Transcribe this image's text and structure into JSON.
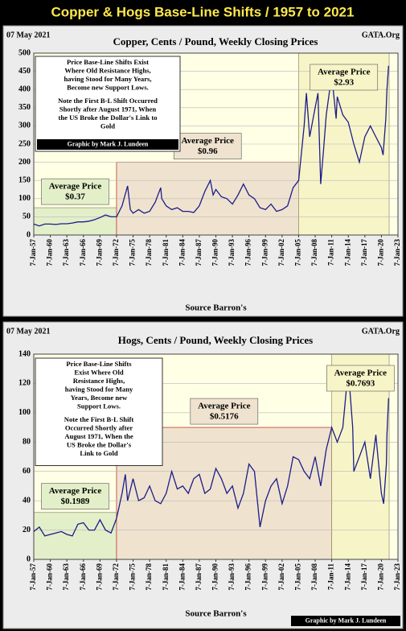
{
  "title": "Copper & Hogs Base-Line Shifts / 1957 to 2021",
  "chart_data": [
    {
      "type": "line",
      "title": "Copper, Cents / Pound, Weekly Closing Prices",
      "date": "07 May 2021",
      "source": "GATA.Org",
      "xlabel": "Source Barron's",
      "credit": "Graphic by Mark J. Lundeen",
      "color": "#1c1c8a",
      "grid": true,
      "xlim": [
        1957,
        2023
      ],
      "ylim": [
        0,
        500
      ],
      "yticks": [
        0,
        50,
        100,
        150,
        200,
        250,
        300,
        350,
        400,
        450,
        500
      ],
      "xticks": [
        {
          "value": 1957,
          "label": "7-Jan-57"
        },
        {
          "value": 1960,
          "label": "7-Jan-60"
        },
        {
          "value": 1963,
          "label": "7-Jan-63"
        },
        {
          "value": 1966,
          "label": "7-Jan-66"
        },
        {
          "value": 1969,
          "label": "7-Jan-69"
        },
        {
          "value": 1972,
          "label": "7-Jan-72"
        },
        {
          "value": 1975,
          "label": "7-Jan-75"
        },
        {
          "value": 1978,
          "label": "7-Jan-78"
        },
        {
          "value": 1981,
          "label": "7-Jan-81"
        },
        {
          "value": 1984,
          "label": "7-Jan-84"
        },
        {
          "value": 1987,
          "label": "7-Jan-87"
        },
        {
          "value": 1990,
          "label": "7-Jan-90"
        },
        {
          "value": 1993,
          "label": "7-Jan-93"
        },
        {
          "value": 1996,
          "label": "7-Jan-96"
        },
        {
          "value": 1999,
          "label": "7-Jan-99"
        },
        {
          "value": 2002,
          "label": "7-Jan-02"
        },
        {
          "value": 2005,
          "label": "7-Jan-05"
        },
        {
          "value": 2008,
          "label": "7-Jan-08"
        },
        {
          "value": 2011,
          "label": "7-Jan-11"
        },
        {
          "value": 2014,
          "label": "7-Jan-14"
        },
        {
          "value": 2017,
          "label": "7-Jan-17"
        },
        {
          "value": 2020,
          "label": "7-Jan-20"
        },
        {
          "value": 2023,
          "label": "7-Jan-23"
        }
      ],
      "x": [
        1957,
        1958,
        1959,
        1960,
        1961,
        1962,
        1963,
        1964,
        1965,
        1966,
        1967,
        1968,
        1969,
        1970,
        1971,
        1972,
        1973,
        1974,
        1974.5,
        1975,
        1976,
        1977,
        1978,
        1979,
        1980,
        1980.2,
        1981,
        1982,
        1983,
        1984,
        1985,
        1986,
        1987,
        1988,
        1989,
        1989.5,
        1990,
        1991,
        1992,
        1993,
        1994,
        1995,
        1996,
        1997,
        1998,
        1999,
        2000,
        2001,
        2002,
        2003,
        2004,
        2005,
        2006,
        2006.4,
        2007,
        2008,
        2008.5,
        2009,
        2009.5,
        2010,
        2011,
        2011.8,
        2012,
        2013,
        2014,
        2015,
        2016,
        2017,
        2018,
        2019,
        2020,
        2020.3,
        2020.8,
        2021,
        2021.3
      ],
      "values": [
        30,
        25,
        30,
        30,
        29,
        31,
        31,
        33,
        36,
        36,
        38,
        42,
        48,
        55,
        50,
        50,
        80,
        135,
        70,
        60,
        70,
        60,
        65,
        90,
        130,
        100,
        80,
        70,
        75,
        65,
        65,
        62,
        80,
        120,
        150,
        110,
        125,
        105,
        100,
        85,
        110,
        140,
        110,
        100,
        75,
        70,
        85,
        65,
        70,
        80,
        130,
        150,
        300,
        390,
        270,
        350,
        390,
        140,
        230,
        330,
        440,
        320,
        380,
        330,
        310,
        250,
        200,
        270,
        300,
        270,
        240,
        220,
        320,
        400,
        465
      ],
      "regions": [
        {
          "start": 1957,
          "end": 1972,
          "top": 75,
          "color": "#e3efc9",
          "label": "Average Price",
          "price": "$0.37"
        },
        {
          "start": 1972,
          "end": 2005,
          "top": 200,
          "color": "#efe3cf",
          "label": "Average Price",
          "price": "$0.96"
        },
        {
          "start": 2005,
          "end": 2021.4,
          "top": 500,
          "color": "#f7f5c8",
          "label": "Average Price",
          "price": "$2.93"
        }
      ],
      "note": [
        [
          "Price Base-Line Shifts Exist",
          "Where Old Resistance Highs,",
          "having Stood for Many Years,",
          "Become new Support Lows."
        ],
        [
          "Note the First B-L Shift Occurred",
          "Shortly after August 1971, When",
          "the US Broke the Dollar's Link to",
          "Gold"
        ]
      ]
    },
    {
      "type": "line",
      "title": "Hogs, Cents / Pound, Weekly Closing Prices",
      "date": "07 May 2021",
      "source": "GATA.Org",
      "xlabel": "Source Barron's",
      "credit": "Graphic by Mark J. Lundeen",
      "color": "#1c1c8a",
      "grid": true,
      "xlim": [
        1957,
        2023
      ],
      "ylim": [
        0,
        140
      ],
      "yticks": [
        0,
        20,
        40,
        60,
        80,
        100,
        120,
        140
      ],
      "xticks": [
        {
          "value": 1957,
          "label": "7-Jan-57"
        },
        {
          "value": 1960,
          "label": "7-Jan-60"
        },
        {
          "value": 1963,
          "label": "7-Jan-63"
        },
        {
          "value": 1966,
          "label": "7-Jan-66"
        },
        {
          "value": 1969,
          "label": "7-Jan-69"
        },
        {
          "value": 1972,
          "label": "7-Jan-72"
        },
        {
          "value": 1975,
          "label": "7-Jan-75"
        },
        {
          "value": 1978,
          "label": "7-Jan-78"
        },
        {
          "value": 1981,
          "label": "7-Jan-81"
        },
        {
          "value": 1984,
          "label": "7-Jan-84"
        },
        {
          "value": 1987,
          "label": "7-Jan-87"
        },
        {
          "value": 1990,
          "label": "7-Jan-90"
        },
        {
          "value": 1993,
          "label": "7-Jan-93"
        },
        {
          "value": 1996,
          "label": "7-Jan-96"
        },
        {
          "value": 1999,
          "label": "7-Jan-99"
        },
        {
          "value": 2002,
          "label": "7-Jan-02"
        },
        {
          "value": 2005,
          "label": "7-Jan-05"
        },
        {
          "value": 2008,
          "label": "7-Jan-08"
        },
        {
          "value": 2011,
          "label": "7-Jan-11"
        },
        {
          "value": 2014,
          "label": "7-Jan-14"
        },
        {
          "value": 2017,
          "label": "7-Jan-17"
        },
        {
          "value": 2020,
          "label": "7-Jan-20"
        },
        {
          "value": 2023,
          "label": "7-Jan-23"
        }
      ],
      "x": [
        1957,
        1958,
        1959,
        1960,
        1961,
        1962,
        1963,
        1964,
        1965,
        1966,
        1967,
        1968,
        1969,
        1970,
        1971,
        1972,
        1973,
        1973.6,
        1974,
        1975,
        1976,
        1977,
        1978,
        1979,
        1980,
        1981,
        1982,
        1983,
        1984,
        1985,
        1986,
        1987,
        1988,
        1989,
        1990,
        1991,
        1992,
        1993,
        1994,
        1995,
        1996,
        1997,
        1998,
        1999,
        2000,
        2001,
        2002,
        2003,
        2004,
        2005,
        2006,
        2007,
        2008,
        2009,
        2010,
        2011,
        2012,
        2013,
        2014,
        2014.8,
        2015,
        2016,
        2017,
        2018,
        2019,
        2020,
        2020.4,
        2020.9,
        2021,
        2021.3
      ],
      "values": [
        19,
        22,
        16,
        17,
        18,
        19,
        17,
        16,
        24,
        25,
        20,
        20,
        27,
        20,
        18,
        28,
        45,
        58,
        40,
        55,
        40,
        42,
        50,
        40,
        38,
        45,
        60,
        48,
        50,
        45,
        55,
        58,
        45,
        48,
        62,
        55,
        45,
        50,
        35,
        45,
        65,
        60,
        22,
        40,
        50,
        55,
        38,
        50,
        70,
        68,
        60,
        55,
        70,
        50,
        75,
        90,
        80,
        90,
        130,
        90,
        60,
        70,
        80,
        55,
        85,
        45,
        38,
        65,
        85,
        110
      ],
      "regions": [
        {
          "start": 1957,
          "end": 1972,
          "top": 32,
          "color": "#e3efc9",
          "label": "Average Price",
          "price": "$0.1989"
        },
        {
          "start": 1972,
          "end": 2011,
          "top": 90,
          "color": "#efe3cf",
          "label": "Average Price",
          "price": "$0.5176"
        },
        {
          "start": 2011,
          "end": 2021.4,
          "top": 140,
          "color": "#f7f5c8",
          "label": "Average Price",
          "price": "$0.7693"
        }
      ],
      "note": [
        [
          "Price Base-Line Shifts",
          "Exist Where Old",
          "Resistance Highs,",
          "having Stood for Many",
          "Years, Become new",
          "Support Lows."
        ],
        [
          "Note the First B-L Shift",
          "Occurred Shortly after",
          "August 1971, When the",
          "US Broke the Dollar's",
          "Link to Gold"
        ]
      ]
    }
  ]
}
